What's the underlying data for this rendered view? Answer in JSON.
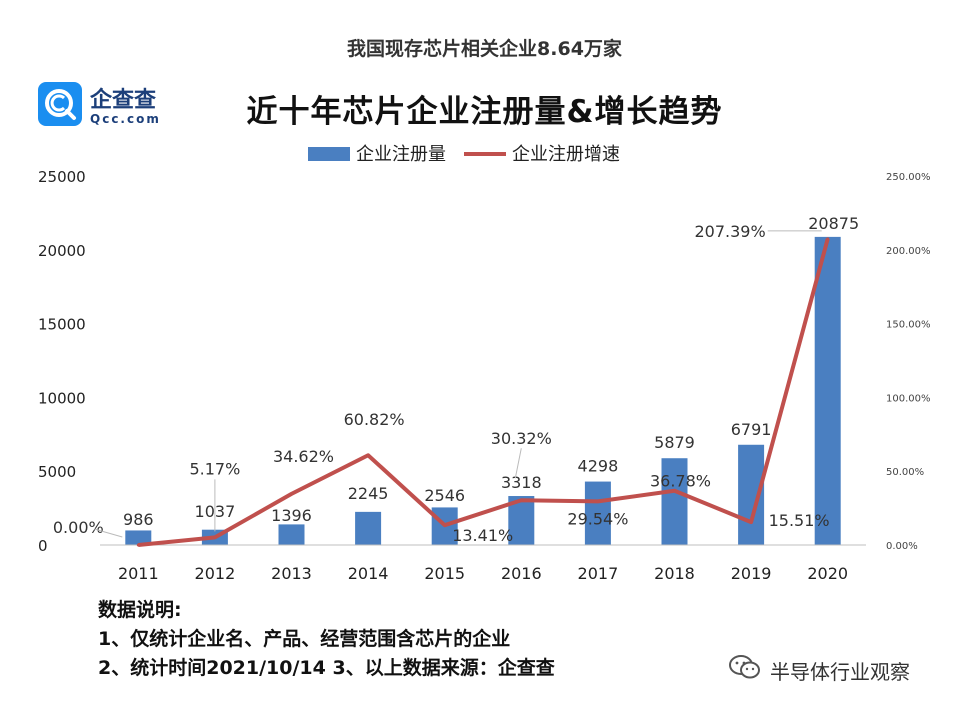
{
  "header": {
    "top_title": "我国现存芯片相关企业8.64万家",
    "main_title": "近十年芯片企业注册量&增长趋势"
  },
  "logo": {
    "brand": "企查查",
    "domain": "Qcc.com",
    "mark_color": "#1a8ef0"
  },
  "chart_data": {
    "type": "bar",
    "categories": [
      "2011",
      "2012",
      "2013",
      "2014",
      "2015",
      "2016",
      "2017",
      "2018",
      "2019",
      "2020"
    ],
    "series": [
      {
        "name": "企业注册量",
        "type": "bar",
        "axis": "left",
        "color": "#4a7fc1",
        "values": [
          986,
          1037,
          1396,
          2245,
          2546,
          3318,
          4298,
          5879,
          6791,
          20875
        ],
        "labels": [
          "986",
          "1037",
          "1396",
          "2245",
          "2546",
          "3318",
          "4298",
          "5879",
          "6791",
          "20875"
        ]
      },
      {
        "name": "企业注册增速",
        "type": "line",
        "axis": "right",
        "color": "#c0504d",
        "values": [
          0.0,
          5.17,
          34.62,
          60.82,
          13.41,
          30.32,
          29.54,
          36.78,
          15.51,
          207.39
        ],
        "labels": [
          "0.00%",
          "5.17%",
          "34.62%",
          "60.82%",
          "13.41%",
          "30.32%",
          "29.54%",
          "36.78%",
          "15.51%",
          "207.39%"
        ]
      }
    ],
    "y_left": {
      "min": 0,
      "max": 25000,
      "ticks": [
        "0",
        "5000",
        "10000",
        "15000",
        "20000",
        "25000"
      ]
    },
    "y_right": {
      "min": 0,
      "max": 250,
      "ticks": [
        "0.00%",
        "50.00%",
        "100.00%",
        "150.00%",
        "200.00%",
        "250.00%"
      ]
    },
    "grid": false,
    "legend": "top-center"
  },
  "notes": {
    "heading": "数据说明:",
    "line1": "1、仅统计企业名、产品、经营范围含芯片的企业",
    "line2": "2、统计时间2021/10/14   3、以上数据来源：企查查"
  },
  "footer": {
    "account": "半导体行业观察"
  }
}
